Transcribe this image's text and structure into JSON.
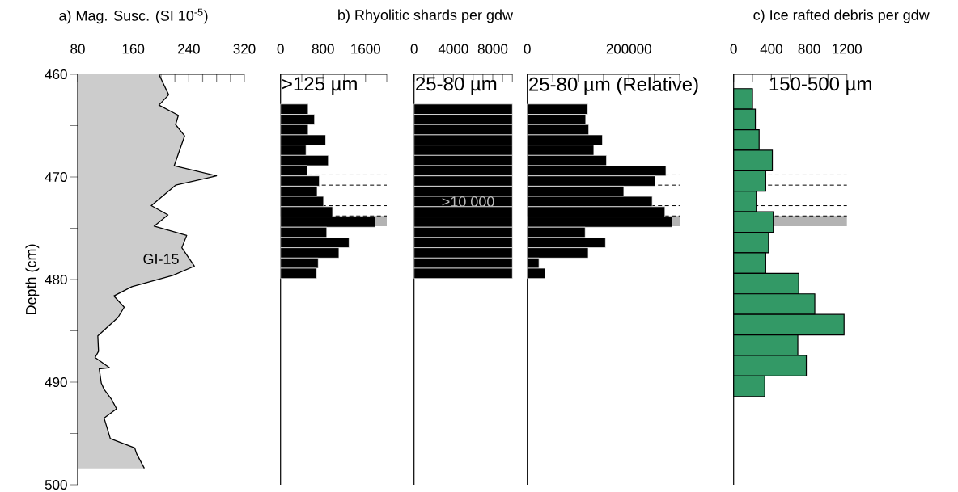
{
  "chart_data": [
    {
      "type": "area",
      "orientation": "horizontal",
      "title": "a) Mag. Susc. (SI 10$^{-5}$)",
      "ylabel": "Depth (cm)",
      "annotations": [
        "GI-15"
      ],
      "color": "#cccccc",
      "x": [
        460,
        462,
        463,
        464,
        464.9,
        466,
        468.9,
        469.9,
        470.8,
        472.8,
        473.7,
        474.8,
        475.7,
        476.9,
        478.7,
        479.6,
        480.7,
        481.6,
        482.7,
        483.7,
        485.5,
        487,
        487.6,
        488.6,
        488.7,
        490.1,
        490.7,
        491.7,
        492.6,
        493.5,
        495.5,
        496.4,
        497,
        498.4
      ],
      "values": [
        197,
        211,
        197,
        225,
        221,
        234,
        219,
        280,
        221,
        186,
        210,
        190,
        237,
        230,
        248,
        217,
        158,
        132,
        147,
        138,
        109,
        110,
        105,
        126,
        111,
        114,
        118,
        129,
        136,
        118,
        127,
        162,
        165,
        176
      ],
      "xlim": [
        80,
        320
      ],
      "xticks": [
        80,
        {
          "value": 100,
          "label": null
        },
        {
          "value": 120,
          "label": null
        },
        {
          "value": 140,
          "label": null
        },
        160,
        {
          "value": 180,
          "label": null
        },
        {
          "value": 200,
          "label": null
        },
        {
          "value": 220,
          "label": null
        },
        240,
        {
          "value": 260,
          "label": null
        },
        {
          "value": 280,
          "label": null
        },
        {
          "value": 300,
          "label": null
        },
        320
      ],
      "ylim": [
        500,
        460
      ],
      "yticks": [
        460,
        {
          "value": 465,
          "label": null
        },
        470,
        {
          "value": 475,
          "label": null
        },
        480,
        {
          "value": 485,
          "label": null
        },
        490,
        {
          "value": 495,
          "label": null
        },
        500
      ]
    },
    {
      "type": "bar",
      "orientation": "horizontal",
      "subtitle": ">125 µm",
      "color": "#000000",
      "tick_labels": "x",
      "x": [
        463.4,
        464.4,
        465.4,
        466.4,
        467.4,
        468.4,
        469.4,
        470.4,
        471.4,
        472.4,
        473.4,
        474.4,
        475.4,
        476.4,
        477.4,
        478.4,
        479.4
      ],
      "values": [
        520,
        640,
        520,
        850,
        480,
        900,
        500,
        730,
        690,
        810,
        980,
        1780,
        870,
        1290,
        1100,
        710,
        680
      ],
      "xlim": [
        0,
        2000
      ],
      "xticks": [
        0,
        {
          "value": 400,
          "label": null
        },
        800,
        {
          "value": 1200,
          "label": null
        },
        1600,
        {
          "value": 2000,
          "label": null
        }
      ],
      "ylim": [
        500,
        460
      ],
      "ref_lines": [
        {
          "axis": "y",
          "value": 469.8,
          "line_style": "dashed"
        },
        {
          "axis": "y",
          "value": 470.8,
          "line_style": "dashed"
        },
        {
          "axis": "y",
          "value": 472.8,
          "line_style": "dashed"
        },
        {
          "axis": "y",
          "value": 473.8,
          "line_style": "dashed"
        }
      ],
      "bands": [
        {
          "axis": "y",
          "from": 473.8,
          "to": 474.8,
          "color": "#b3b3b3"
        }
      ]
    },
    {
      "type": "bar",
      "orientation": "horizontal",
      "title": "b) Rhyolitic shards per gdw",
      "subtitle": "25-80 µm",
      "annotations": [
        ">10 000"
      ],
      "color": "#000000",
      "tick_labels": "x",
      "x": [
        463.4,
        464.4,
        465.4,
        466.4,
        467.4,
        468.4,
        469.4,
        470.4,
        471.4,
        472.4,
        473.4,
        474.4,
        475.4,
        476.4,
        477.4,
        478.4,
        479.4
      ],
      "values": [
        10000,
        10000,
        10000,
        10000,
        10000,
        10000,
        10000,
        10000,
        10000,
        10000,
        10000,
        10000,
        10000,
        10000,
        10000,
        10000,
        10000
      ],
      "xlim": [
        0,
        10000
      ],
      "xticks": [
        0,
        {
          "value": 1000,
          "label": null
        },
        {
          "value": 2000,
          "label": null
        },
        {
          "value": 3000,
          "label": null
        },
        4000,
        {
          "value": 5000,
          "label": null
        },
        {
          "value": 6000,
          "label": null
        },
        {
          "value": 7000,
          "label": null
        },
        8000,
        {
          "value": 9000,
          "label": null
        },
        {
          "value": 10000,
          "label": null
        }
      ],
      "ylim": [
        500,
        460
      ]
    },
    {
      "type": "bar",
      "orientation": "horizontal",
      "subtitle": "25-80 µm (Relative)",
      "color": "#000000",
      "tick_labels": "x",
      "x": [
        463.4,
        464.4,
        465.4,
        466.4,
        467.4,
        468.4,
        469.4,
        470.4,
        471.4,
        472.4,
        473.4,
        474.4,
        475.4,
        476.4,
        477.4,
        478.4,
        479.4
      ],
      "values": [
        119000,
        115000,
        121000,
        148000,
        131000,
        156000,
        273000,
        252000,
        190000,
        246000,
        271000,
        285000,
        114000,
        154000,
        120000,
        23000,
        35000
      ],
      "xlim": [
        0,
        300000
      ],
      "xticks": [
        0,
        {
          "value": 50000,
          "label": null
        },
        {
          "value": 100000,
          "label": null
        },
        {
          "value": 150000,
          "label": null
        },
        200000,
        {
          "value": 250000,
          "label": null
        },
        {
          "value": 300000,
          "label": null
        }
      ],
      "ylim": [
        500,
        460
      ],
      "ref_lines": [
        {
          "axis": "y",
          "value": 469.8,
          "line_style": "dashed"
        },
        {
          "axis": "y",
          "value": 470.8,
          "line_style": "dashed"
        },
        {
          "axis": "y",
          "value": 472.8,
          "line_style": "dashed"
        },
        {
          "axis": "y",
          "value": 473.8,
          "line_style": "dashed"
        }
      ],
      "bands": [
        {
          "axis": "y",
          "from": 473.8,
          "to": 474.8,
          "color": "#b3b3b3"
        }
      ]
    },
    {
      "type": "bar",
      "orientation": "horizontal",
      "title": "c) Ice rafted debris per gdw",
      "subtitle": "150-500 µm",
      "color": "#339966",
      "tick_labels": "x",
      "x": [
        462.4,
        464.4,
        466.4,
        468.4,
        470.4,
        472.4,
        474.4,
        476.4,
        478.4,
        480.4,
        482.4,
        484.4,
        486.4,
        488.4,
        490.4
      ],
      "values": [
        200,
        230,
        270,
        410,
        340,
        240,
        420,
        370,
        340,
        690,
        860,
        1170,
        680,
        770,
        330
      ],
      "xlim": [
        0,
        1200
      ],
      "xticks": [
        0,
        {
          "value": 200,
          "label": null
        },
        400,
        {
          "value": 600,
          "label": null
        },
        800,
        {
          "value": 1000,
          "label": null
        },
        1200
      ],
      "ylim": [
        500,
        460
      ],
      "ref_lines": [
        {
          "axis": "y",
          "value": 469.8,
          "line_style": "dashed"
        },
        {
          "axis": "y",
          "value": 470.8,
          "line_style": "dashed"
        },
        {
          "axis": "y",
          "value": 472.8,
          "line_style": "dashed"
        },
        {
          "axis": "y",
          "value": 473.8,
          "line_style": "dashed"
        }
      ],
      "bands": [
        {
          "axis": "y",
          "from": 473.8,
          "to": 474.8,
          "color": "#b3b3b3"
        }
      ]
    }
  ]
}
